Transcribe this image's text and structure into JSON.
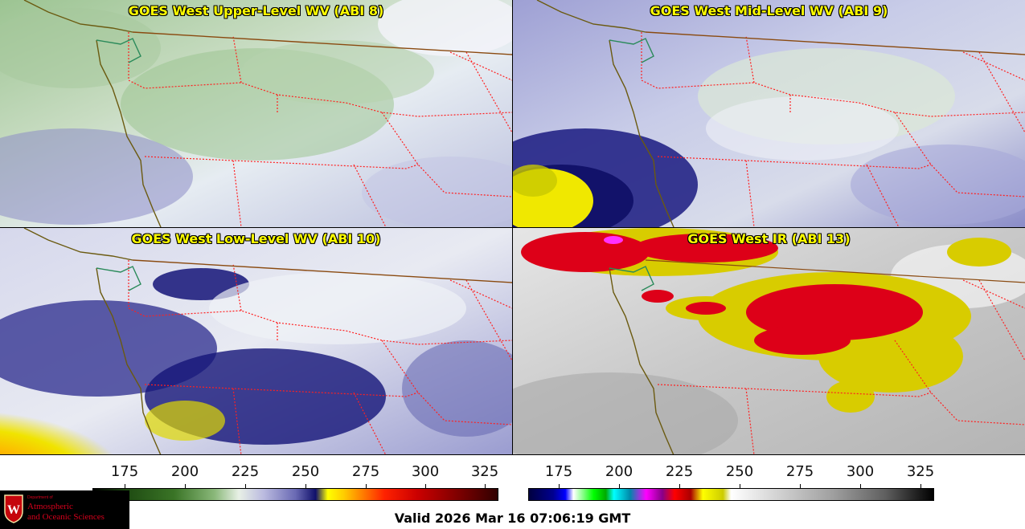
{
  "panels": [
    {
      "title": "GOES West Upper-Level WV (ABI 8)"
    },
    {
      "title": "GOES West Mid-Level WV (ABI 9)"
    },
    {
      "title": "GOES West Low-Level WV (ABI 10)"
    },
    {
      "title": "GOES West IR (ABI 13)"
    }
  ],
  "colorbars": [
    {
      "ticks": [
        "175",
        "200",
        "225",
        "250",
        "275",
        "300",
        "325"
      ]
    },
    {
      "ticks": [
        "175",
        "200",
        "225",
        "250",
        "275",
        "300",
        "325"
      ]
    }
  ],
  "logo": {
    "line1": "Department of",
    "line2": "Atmospheric",
    "line3": "and Oceanic Sciences",
    "shield_letter": "W"
  },
  "valid_time": "Valid 2026 Mar 16 07:06:19 GMT",
  "colors": {
    "title_text": "#ffff00",
    "state_borders": "#ff2020",
    "coastline": "#6b5a10",
    "logo_red": "#d6001c"
  },
  "icons": [
    "uw-crest-icon"
  ]
}
